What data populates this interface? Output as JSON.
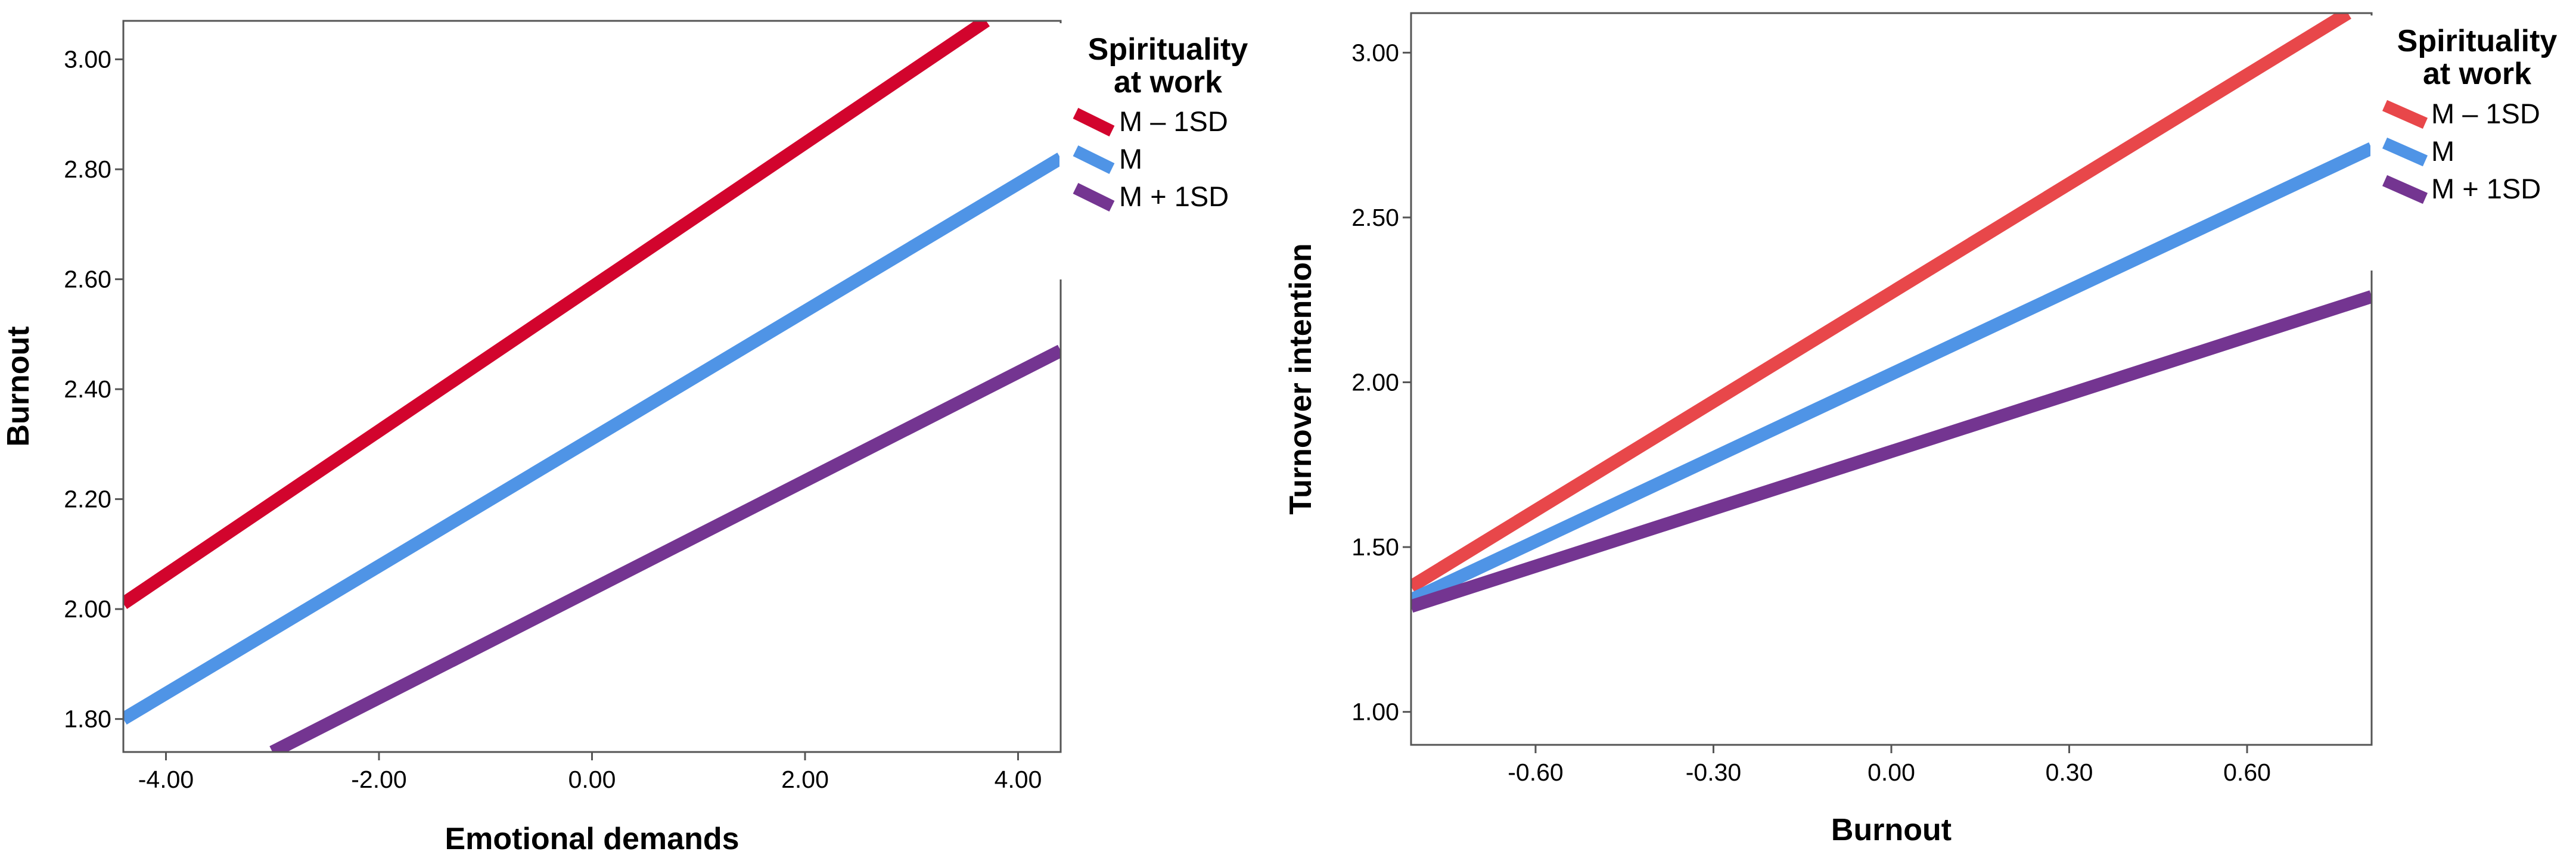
{
  "chart_data": [
    {
      "type": "line",
      "xlabel": "Emotional demands",
      "ylabel": "Burnout",
      "xlim": [
        -4.4,
        4.4
      ],
      "ylim": [
        1.74,
        3.07
      ],
      "xticks": [
        "-4.00",
        "-2.00",
        "0.00",
        "2.00",
        "4.00"
      ],
      "yticks": [
        "1.80",
        "2.00",
        "2.20",
        "2.40",
        "2.60",
        "2.80",
        "3.00"
      ],
      "legend": {
        "title_lines": [
          "Spirituality",
          "at work"
        ],
        "position": "right"
      },
      "series": [
        {
          "name": "M – 1SD",
          "color": "#d2042d",
          "points": [
            [
              -4.4,
              2.01
            ],
            [
              3.7,
              3.07
            ]
          ]
        },
        {
          "name": "M",
          "color": "#4f94e6",
          "points": [
            [
              -4.4,
              1.8
            ],
            [
              4.4,
              2.82
            ]
          ]
        },
        {
          "name": "M + 1SD",
          "color": "#743591",
          "points": [
            [
              -3.0,
              1.74
            ],
            [
              4.4,
              2.47
            ]
          ]
        }
      ]
    },
    {
      "type": "line",
      "xlabel": "Burnout",
      "ylabel": "Turnover intention",
      "xlim": [
        -0.81,
        0.81
      ],
      "ylim": [
        0.9,
        3.12
      ],
      "xticks": [
        "-0.60",
        "-0.30",
        "0.00",
        "0.30",
        "0.60"
      ],
      "yticks": [
        "1.00",
        "1.50",
        "2.00",
        "2.50",
        "3.00"
      ],
      "legend": {
        "title_lines": [
          "Spirituality",
          "at work"
        ],
        "position": "right"
      },
      "series": [
        {
          "name": "M – 1SD",
          "color": "#e8474a",
          "points": [
            [
              -0.81,
              1.38
            ],
            [
              0.77,
              3.12
            ]
          ]
        },
        {
          "name": "M",
          "color": "#4f94e6",
          "points": [
            [
              -0.81,
              1.34
            ],
            [
              0.81,
              2.71
            ]
          ]
        },
        {
          "name": "M + 1SD",
          "color": "#743591",
          "points": [
            [
              -0.81,
              1.32
            ],
            [
              0.81,
              2.26
            ]
          ]
        }
      ]
    }
  ]
}
